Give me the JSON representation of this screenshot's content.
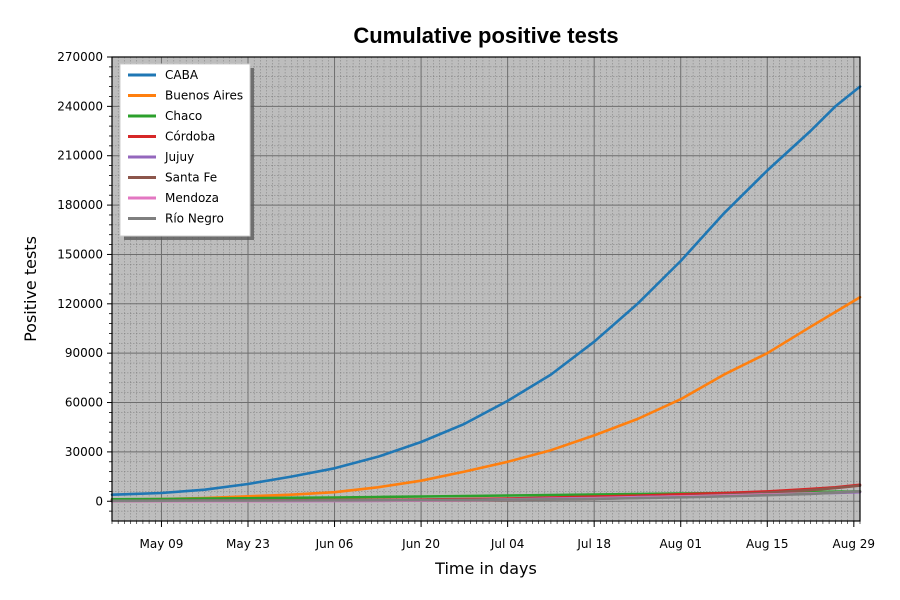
{
  "chart_data": {
    "type": "line",
    "title": "Cumulative positive tests",
    "xlabel": "Time in days",
    "ylabel": "Positive tests",
    "xlim": [
      "2020-05-01",
      "2020-08-30"
    ],
    "ylim": [
      -12000,
      270000
    ],
    "y_ticks": [
      0,
      30000,
      60000,
      90000,
      120000,
      150000,
      180000,
      210000,
      240000,
      270000
    ],
    "x_ticks": [
      {
        "date": "2020-05-09",
        "label": "May 09"
      },
      {
        "date": "2020-05-23",
        "label": "May 23"
      },
      {
        "date": "2020-06-06",
        "label": "Jun 06"
      },
      {
        "date": "2020-06-20",
        "label": "Jun 20"
      },
      {
        "date": "2020-07-04",
        "label": "Jul 04"
      },
      {
        "date": "2020-07-18",
        "label": "Jul 18"
      },
      {
        "date": "2020-08-01",
        "label": "Aug 01"
      },
      {
        "date": "2020-08-15",
        "label": "Aug 15"
      },
      {
        "date": "2020-08-29",
        "label": "Aug 29"
      }
    ],
    "grid": true,
    "legend_position": "top-left",
    "background": "#bdbdbd",
    "x": [
      "2020-05-01",
      "2020-05-09",
      "2020-05-16",
      "2020-05-23",
      "2020-05-30",
      "2020-06-06",
      "2020-06-13",
      "2020-06-20",
      "2020-06-27",
      "2020-07-04",
      "2020-07-11",
      "2020-07-18",
      "2020-07-25",
      "2020-08-01",
      "2020-08-08",
      "2020-08-15",
      "2020-08-22",
      "2020-08-26",
      "2020-08-30"
    ],
    "series": [
      {
        "name": "CABA",
        "color": "#1f77b4",
        "values": [
          4000,
          5000,
          7000,
          10500,
          15000,
          20000,
          27000,
          36000,
          47000,
          61000,
          77000,
          97000,
          120000,
          146000,
          175000,
          201000,
          225000,
          240000,
          252000
        ]
      },
      {
        "name": "Buenos Aires",
        "color": "#ff7f0e",
        "values": [
          1000,
          1300,
          2000,
          3000,
          4000,
          5500,
          8500,
          12500,
          18000,
          24000,
          31000,
          40000,
          50000,
          62000,
          77000,
          90000,
          106000,
          115000,
          124000
        ]
      },
      {
        "name": "Chaco",
        "color": "#2ca02c",
        "values": [
          1200,
          1400,
          1600,
          1800,
          2100,
          2300,
          2600,
          2900,
          3200,
          3500,
          3800,
          4100,
          4400,
          4700,
          5000,
          5300,
          5600,
          5800,
          6000
        ]
      },
      {
        "name": "Córdoba",
        "color": "#d62728",
        "values": [
          300,
          350,
          420,
          500,
          600,
          700,
          850,
          1000,
          1300,
          1700,
          2200,
          2800,
          3400,
          4200,
          5000,
          6000,
          7500,
          8500,
          10000
        ]
      },
      {
        "name": "Jujuy",
        "color": "#9467bd",
        "values": [
          100,
          100,
          100,
          100,
          100,
          200,
          300,
          500,
          800,
          1200,
          1600,
          2000,
          2500,
          3000,
          3500,
          4000,
          4700,
          5100,
          5500
        ]
      },
      {
        "name": "Santa Fe",
        "color": "#8c564b",
        "values": [
          200,
          220,
          250,
          280,
          320,
          360,
          400,
          450,
          550,
          800,
          1100,
          1500,
          2100,
          3000,
          4000,
          5200,
          6800,
          8000,
          9500
        ]
      },
      {
        "name": "Mendoza",
        "color": "#e377c2",
        "values": [
          100,
          100,
          100,
          100,
          150,
          200,
          300,
          400,
          600,
          1000,
          1400,
          1800,
          2300,
          2900,
          3500,
          4100,
          4800,
          5300,
          5900
        ]
      },
      {
        "name": "Río Negro",
        "color": "#7f7f7f",
        "values": [
          300,
          340,
          380,
          420,
          470,
          520,
          600,
          700,
          850,
          1000,
          1200,
          1500,
          1900,
          2400,
          3000,
          3700,
          4500,
          5200,
          6000
        ]
      }
    ]
  }
}
